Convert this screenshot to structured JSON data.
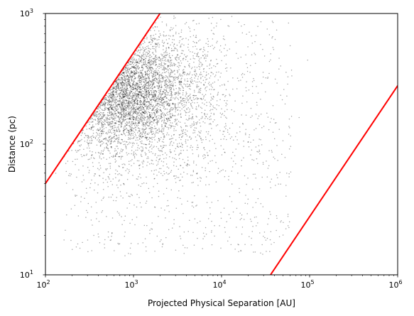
{
  "chart_data": {
    "type": "scatter",
    "xlabel": "Projected Physical Separation [AU]",
    "ylabel": "Distance (pc)",
    "xscale": "log",
    "yscale": "log",
    "xlim": [
      100,
      1000000
    ],
    "ylim": [
      10,
      1000
    ],
    "grid": false,
    "x_ticks": [
      {
        "value": 100,
        "base": "10",
        "exp": "2"
      },
      {
        "value": 1000,
        "base": "10",
        "exp": "3"
      },
      {
        "value": 10000,
        "base": "10",
        "exp": "4"
      },
      {
        "value": 100000,
        "base": "10",
        "exp": "5"
      },
      {
        "value": 1000000,
        "base": "10",
        "exp": "6"
      }
    ],
    "y_ticks": [
      {
        "value": 10,
        "base": "10",
        "exp": "1"
      },
      {
        "value": 100,
        "base": "10",
        "exp": "2"
      },
      {
        "value": 1000,
        "base": "10",
        "exp": "3"
      }
    ],
    "lines": [
      {
        "x": [
          100,
          2000
        ],
        "y": [
          50,
          1000
        ],
        "color": "#ff0000"
      },
      {
        "x": [
          36000,
          1000000
        ],
        "y": [
          10,
          280
        ],
        "color": "#ff0000"
      }
    ],
    "points": {
      "color": "#000000",
      "opacity": 0.35,
      "count": 5000,
      "dense_region": {
        "x_center": 800,
        "y_center": 250
      },
      "x_range": [
        100,
        100000
      ],
      "y_range": [
        13,
        1000
      ],
      "highlighted": [
        {
          "x": 22500,
          "y": 245
        },
        {
          "x": 9800,
          "y": 900
        },
        {
          "x": 33000,
          "y": 760
        },
        {
          "x": 38000,
          "y": 665
        },
        {
          "x": 76000,
          "y": 160
        },
        {
          "x": 95000,
          "y": 440
        },
        {
          "x": 54000,
          "y": 40
        },
        {
          "x": 36000,
          "y": 29
        },
        {
          "x": 17000,
          "y": 20.5
        },
        {
          "x": 800,
          "y": 14
        },
        {
          "x": 2000,
          "y": 18
        },
        {
          "x": 40000,
          "y": 110
        },
        {
          "x": 55000,
          "y": 60
        }
      ]
    }
  }
}
